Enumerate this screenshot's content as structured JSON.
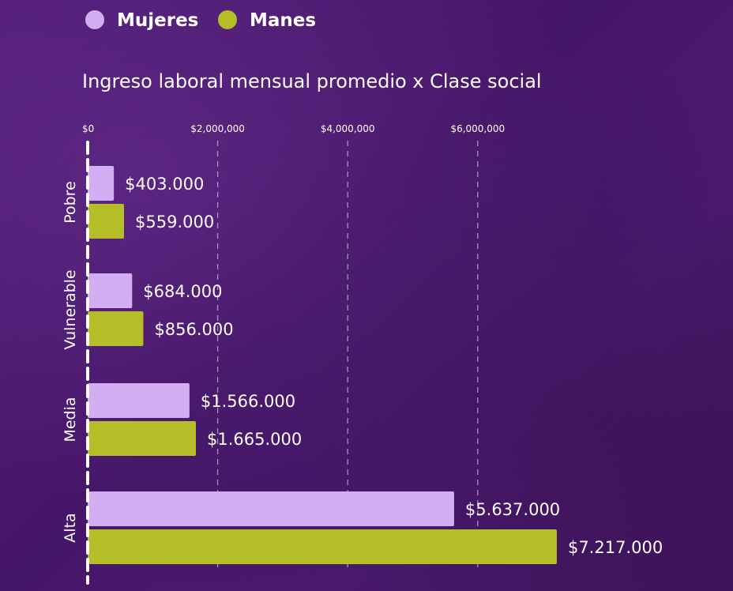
{
  "chart_data": {
    "type": "bar",
    "orientation": "horizontal",
    "title": "Ingreso laboral mensual promedio x Clase social",
    "categories": [
      "Pobre",
      "Vulnerable",
      "Media",
      "Alta"
    ],
    "series": [
      {
        "name": "Mujeres",
        "color": "#d3aef3",
        "values": [
          403000,
          684000,
          1566000,
          5637000
        ],
        "labels": [
          "$403.000",
          "$684.000",
          "$1.566.000",
          "$5.637.000"
        ]
      },
      {
        "name": "Manes",
        "color": "#b5bd28",
        "values": [
          559000,
          856000,
          1665000,
          7217000
        ],
        "labels": [
          "$559.000",
          "$856.000",
          "$1.665.000",
          "$7.217.000"
        ]
      }
    ],
    "x_ticks": [
      0,
      2000000,
      4000000,
      6000000
    ],
    "x_tick_labels": [
      "$0",
      "$2,000,000",
      "$4,000,000",
      "$6,000,000"
    ],
    "xlim": [
      0,
      7400000
    ],
    "grid": "vertical dashed",
    "legend": "top-left"
  },
  "colors": {
    "background": "#4a1a6e",
    "text": "#ffffff",
    "grid": "#c9b7dd"
  }
}
